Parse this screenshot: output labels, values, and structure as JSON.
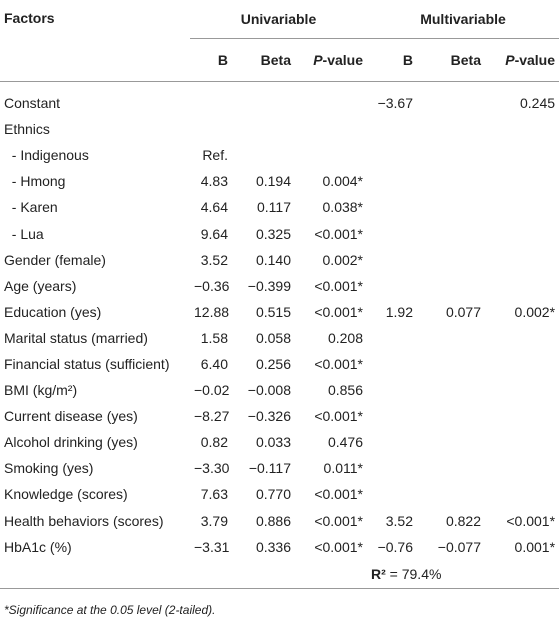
{
  "table": {
    "header": {
      "factors": "Factors",
      "groups": [
        "Univariable",
        "Multivariable"
      ],
      "columns": [
        [
          "B"
        ],
        [
          "Beta"
        ],
        [
          "P",
          "-value"
        ],
        [
          "B"
        ],
        [
          "Beta"
        ],
        [
          "P",
          "-value"
        ]
      ]
    },
    "rows": [
      [
        "Constant",
        null,
        null,
        null,
        "−3.67",
        null,
        "0.245"
      ],
      [
        "Ethnics",
        null,
        null,
        null,
        null,
        null,
        null
      ],
      [
        "  - Indigenous",
        "Ref.",
        null,
        null,
        null,
        null,
        null
      ],
      [
        "  - Hmong",
        "4.83",
        "0.194",
        "0.004*",
        null,
        null,
        null
      ],
      [
        "  - Karen",
        "4.64",
        "0.117",
        "0.038*",
        null,
        null,
        null
      ],
      [
        "  - Lua",
        "9.64",
        "0.325",
        "<0.001*",
        null,
        null,
        null
      ],
      [
        "Gender (female)",
        "3.52",
        "0.140",
        "0.002*",
        null,
        null,
        null
      ],
      [
        "Age (years)",
        "−0.36",
        "−0.399",
        "<0.001*",
        null,
        null,
        null
      ],
      [
        "Education (yes)",
        "12.88",
        "0.515",
        "<0.001*",
        "1.92",
        "0.077",
        "0.002*"
      ],
      [
        "Marital status (married)",
        "1.58",
        "0.058",
        "0.208",
        null,
        null,
        null
      ],
      [
        "Financial status (sufficient)",
        "6.40",
        "0.256",
        "<0.001*",
        null,
        null,
        null
      ],
      [
        "BMI (kg/m²)",
        "−0.02",
        "−0.008",
        "0.856",
        null,
        null,
        null
      ],
      [
        "Current disease (yes)",
        "−8.27",
        "−0.326",
        "<0.001*",
        null,
        null,
        null
      ],
      [
        "Alcohol drinking (yes)",
        "0.82",
        "0.033",
        "0.476",
        null,
        null,
        null
      ],
      [
        "Smoking (yes)",
        "−3.30",
        "−0.117",
        "0.011*",
        null,
        null,
        null
      ],
      [
        "Knowledge (scores)",
        "7.63",
        "0.770",
        "<0.001*",
        null,
        null,
        null
      ],
      [
        "Health behaviors (scores)",
        "3.79",
        "0.886",
        "<0.001*",
        "3.52",
        "0.822",
        "<0.001*"
      ],
      [
        "HbA1c (%)",
        "−3.31",
        "0.336",
        "<0.001*",
        "−0.76",
        "−0.077",
        "0.001*"
      ]
    ],
    "r2": {
      "label": "R²",
      "value": " = 79.4%"
    },
    "footnote": "*Significance at the 0.05 level (2-tailed)."
  }
}
